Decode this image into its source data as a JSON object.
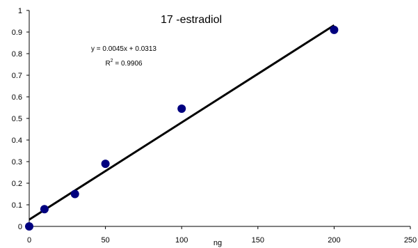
{
  "chart_data": {
    "type": "scatter",
    "title": "17    -estradiol",
    "xlabel": "ng",
    "ylabel": "",
    "xlim": [
      0,
      250
    ],
    "ylim": [
      0,
      1
    ],
    "xticks": [
      "0",
      "50",
      "100",
      "150",
      "200",
      "250"
    ],
    "yticks": [
      "0",
      "0.1",
      "0.2",
      "0.3",
      "0.4",
      "0.5",
      "0.6",
      "0.7",
      "0.8",
      "0.9",
      "1"
    ],
    "grid": false,
    "legend": "none",
    "series": [
      {
        "points": [
          {
            "x": 0,
            "y": 0.0
          },
          {
            "x": 10,
            "y": 0.08
          },
          {
            "x": 30,
            "y": 0.15
          },
          {
            "x": 50,
            "y": 0.29
          },
          {
            "x": 100,
            "y": 0.545
          },
          {
            "x": 200,
            "y": 0.91
          }
        ],
        "color": "#00007f"
      }
    ],
    "trendline": {
      "slope": 0.0045,
      "intercept": 0.0313,
      "x_range": [
        0,
        200
      ],
      "color": "#000000"
    },
    "annotations": {
      "equation": "y = 0.0045x + 0.0313",
      "r2_prefix": "R",
      "r2_sup": "2",
      "r2_suffix": " = 0.9906"
    }
  }
}
